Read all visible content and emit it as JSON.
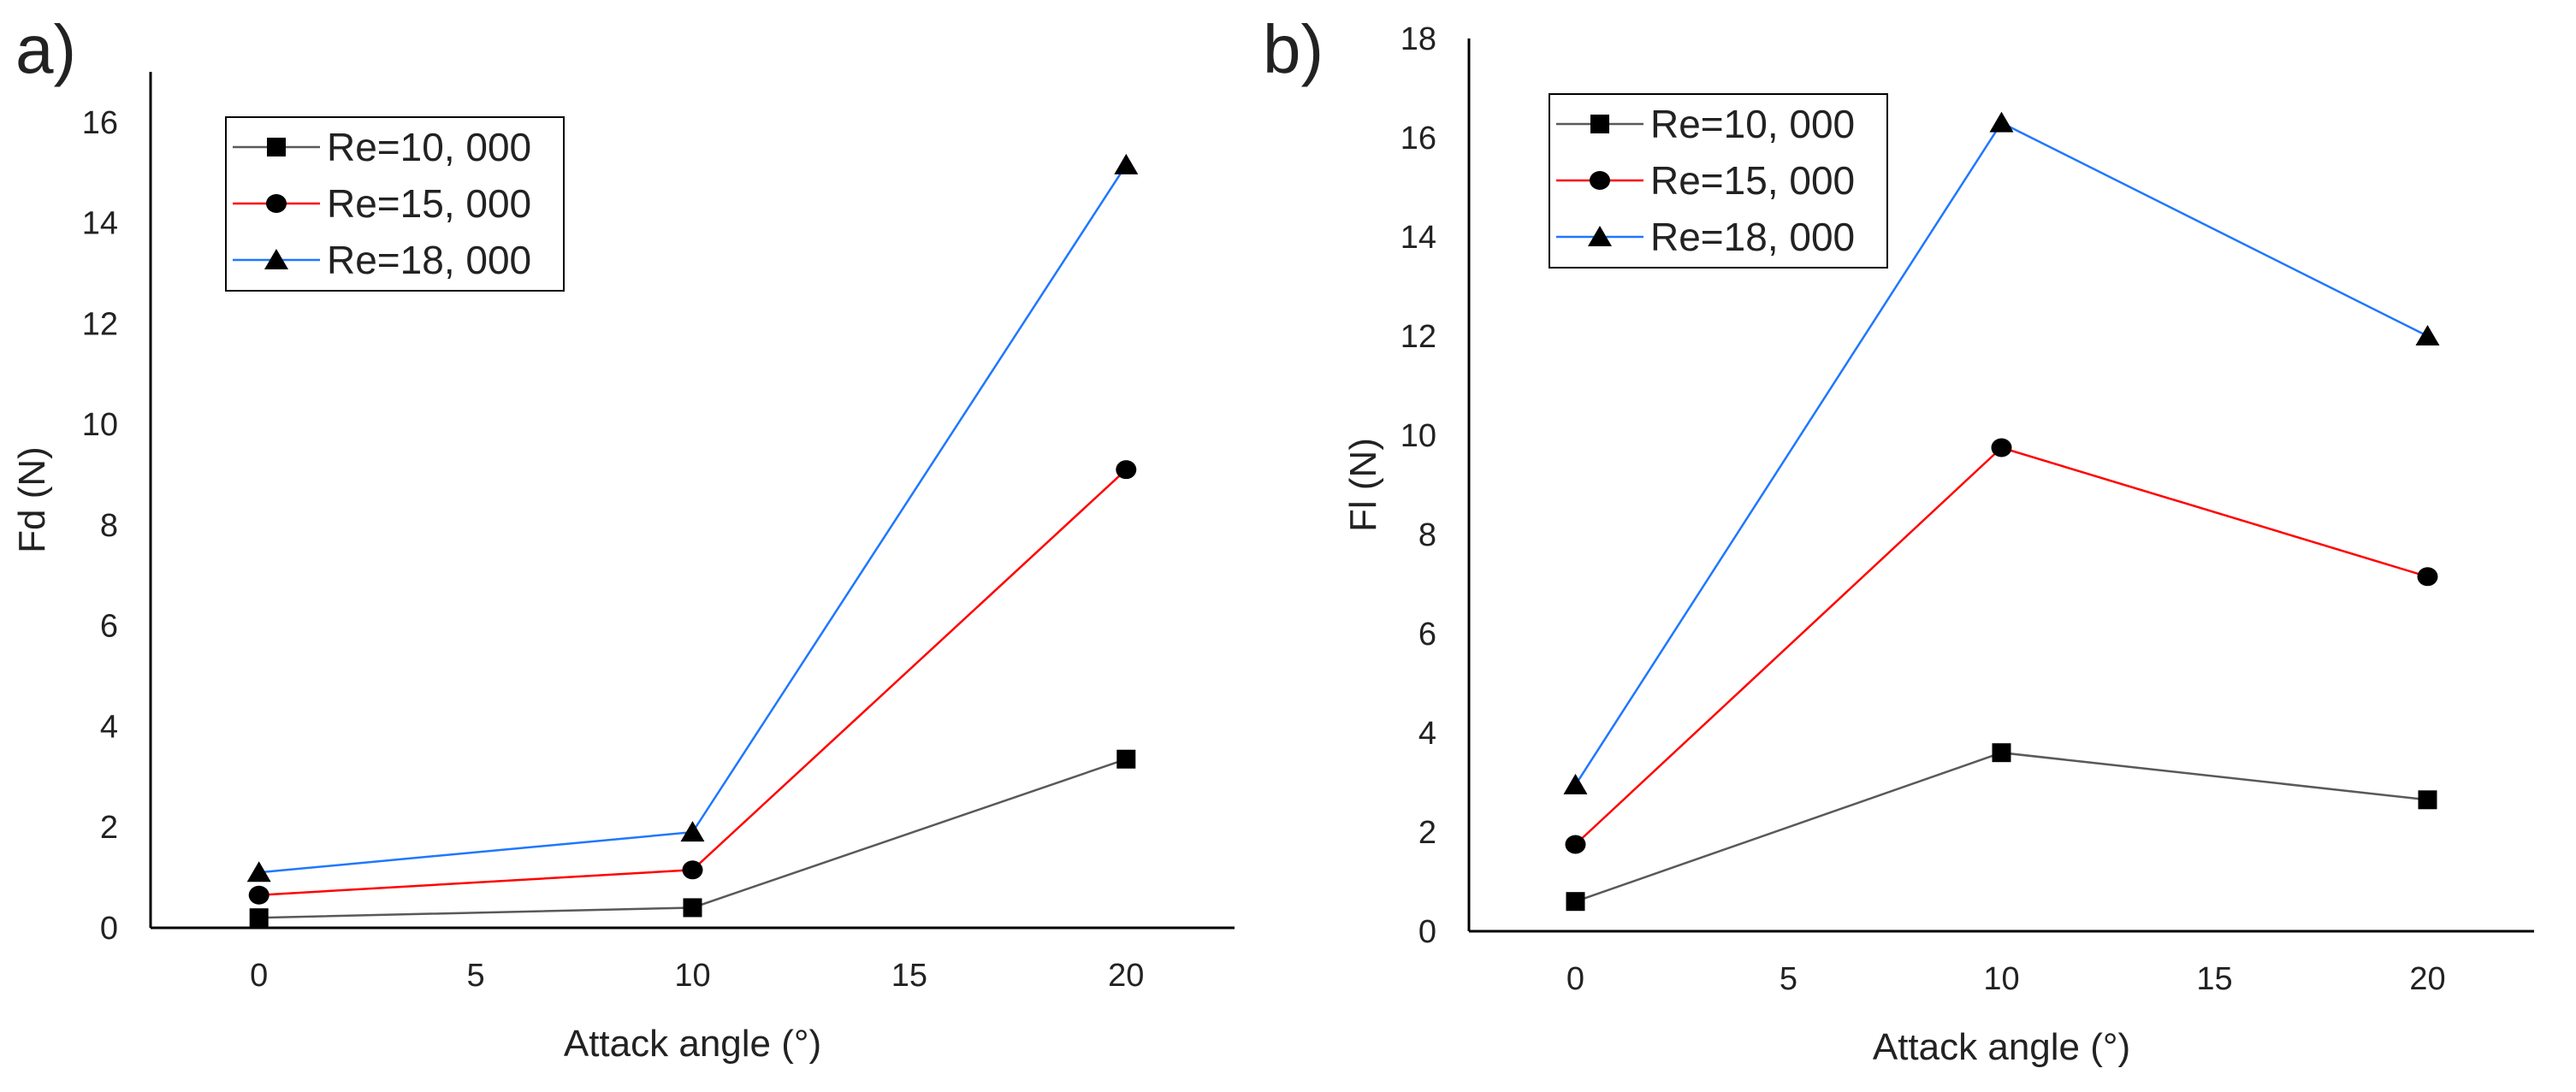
{
  "colors": {
    "series": [
      "#595959",
      "#ff0000",
      "#1f77ff"
    ],
    "marker": "#000000",
    "axis": "#000000",
    "text": "#222222"
  },
  "chart_data": [
    {
      "panel_label": "a)",
      "type": "line",
      "x": [
        0,
        10,
        20
      ],
      "xlabel": "Attack angle (°)",
      "ylabel": "Fd (N)",
      "xlim": [
        -2.5,
        22.5
      ],
      "ylim": [
        0,
        17
      ],
      "xticks": [
        0,
        5,
        10,
        15,
        20
      ],
      "yticks": [
        0,
        2,
        4,
        6,
        8,
        10,
        12,
        14,
        16
      ],
      "legend_position": "top-left",
      "series": [
        {
          "name": "Re=10, 000",
          "marker": "square",
          "values": [
            0.2,
            0.4,
            3.35
          ]
        },
        {
          "name": "Re=15, 000",
          "marker": "circle",
          "values": [
            0.65,
            1.15,
            9.1
          ]
        },
        {
          "name": "Re=18, 000",
          "marker": "triangle",
          "values": [
            1.1,
            1.9,
            15.15
          ]
        }
      ]
    },
    {
      "panel_label": "b)",
      "type": "line",
      "x": [
        0,
        10,
        20
      ],
      "xlabel": "Attack angle (°)",
      "ylabel": "Fl (N)",
      "xlim": [
        -2.5,
        22.5
      ],
      "ylim": [
        0,
        18
      ],
      "xticks": [
        0,
        5,
        10,
        15,
        20
      ],
      "yticks": [
        0,
        2,
        4,
        6,
        8,
        10,
        12,
        14,
        16,
        18
      ],
      "legend_position": "top-left",
      "series": [
        {
          "name": "Re=10, 000",
          "marker": "square",
          "values": [
            0.6,
            3.6,
            2.65
          ]
        },
        {
          "name": "Re=15, 000",
          "marker": "circle",
          "values": [
            1.75,
            9.75,
            7.15
          ]
        },
        {
          "name": "Re=18, 000",
          "marker": "triangle",
          "values": [
            2.95,
            16.3,
            12.0
          ]
        }
      ]
    }
  ]
}
